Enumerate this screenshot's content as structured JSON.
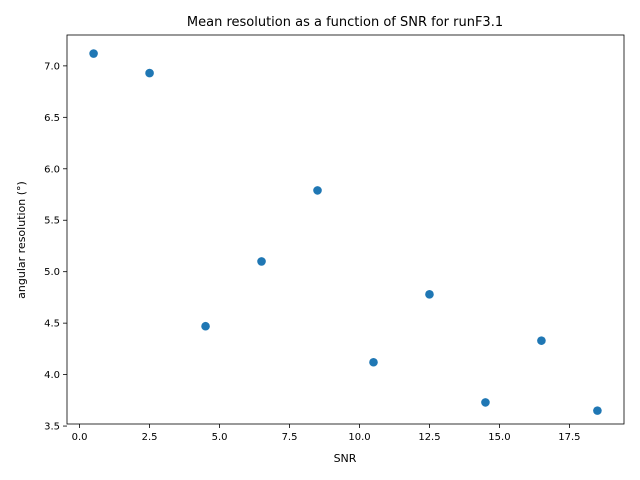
{
  "chart_data": {
    "type": "scatter",
    "title": "Mean resolution as a function of SNR for runF3.1",
    "xlabel": "SNR",
    "ylabel": "angular resolution (°)",
    "xlim": [
      -0.45,
      19.45
    ],
    "ylim": [
      3.52,
      7.3
    ],
    "xticks": [
      0.0,
      2.5,
      5.0,
      7.5,
      10.0,
      12.5,
      15.0,
      17.5
    ],
    "xtick_labels": [
      "0.0",
      "2.5",
      "5.0",
      "7.5",
      "10.0",
      "12.5",
      "15.0",
      "17.5"
    ],
    "yticks": [
      3.5,
      4.0,
      4.5,
      5.0,
      5.5,
      6.0,
      6.5,
      7.0
    ],
    "ytick_labels": [
      "3.5",
      "4.0",
      "4.5",
      "5.0",
      "5.5",
      "6.0",
      "6.5",
      "7.0"
    ],
    "grid": false,
    "marker_color": "#1f77b4",
    "points": [
      {
        "x": 0.5,
        "y": 7.12
      },
      {
        "x": 2.5,
        "y": 6.93
      },
      {
        "x": 4.5,
        "y": 4.47
      },
      {
        "x": 6.5,
        "y": 5.1
      },
      {
        "x": 8.5,
        "y": 5.79
      },
      {
        "x": 10.5,
        "y": 4.12
      },
      {
        "x": 12.5,
        "y": 4.78
      },
      {
        "x": 14.5,
        "y": 3.73
      },
      {
        "x": 16.5,
        "y": 4.33
      },
      {
        "x": 18.5,
        "y": 3.65
      }
    ]
  }
}
